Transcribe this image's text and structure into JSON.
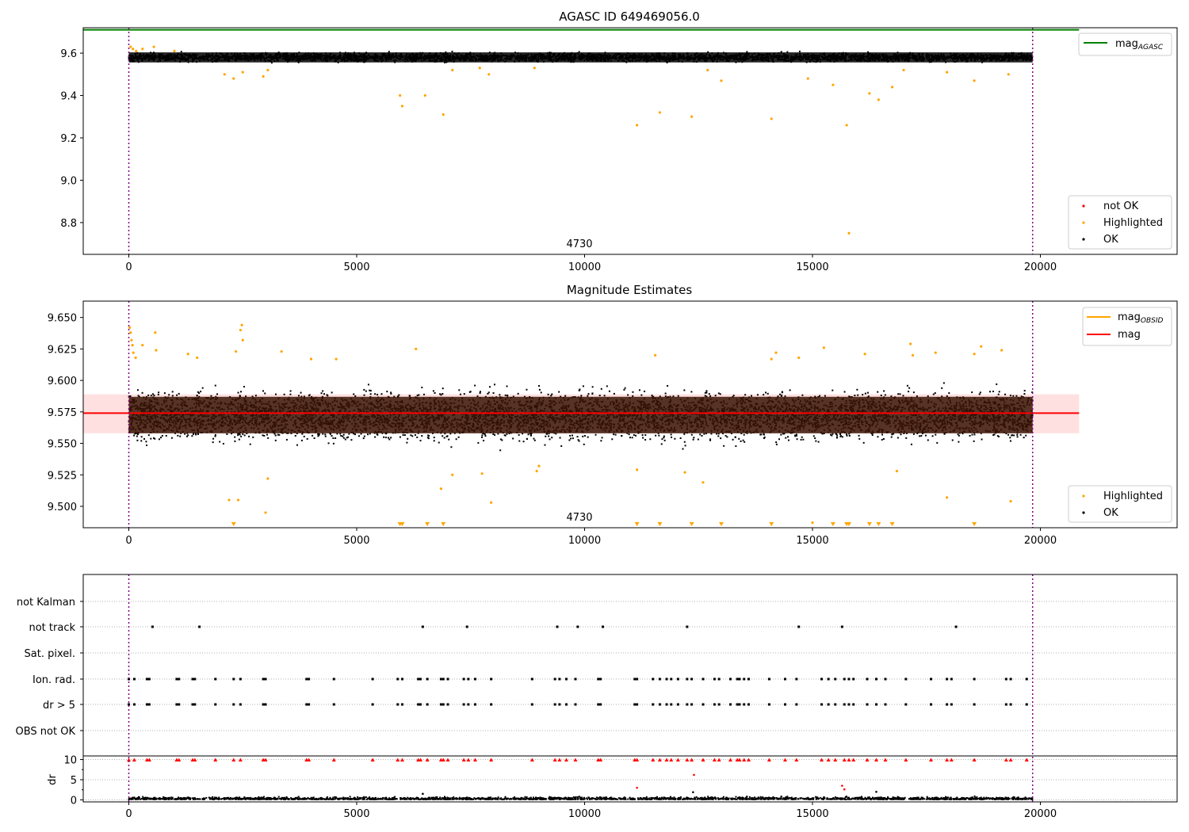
{
  "chart_data": [
    {
      "type": "scatter",
      "title": "AGASC ID 649469056.0",
      "annotation": "4730",
      "xlim": [
        -1000,
        23000
      ],
      "ylim": [
        8.65,
        9.72
      ],
      "x_ticks": [
        0,
        5000,
        10000,
        15000,
        20000
      ],
      "x_tick_labels": [
        "0",
        "5000",
        "10000",
        "15000",
        "20000"
      ],
      "y_ticks": [
        8.8,
        9.0,
        9.2,
        9.4,
        9.6
      ],
      "y_tick_labels": [
        "8.8",
        "9.0",
        "9.2",
        "9.4",
        "9.6"
      ],
      "obs_boundaries": [
        0,
        19830
      ],
      "mag_agasc": 9.71,
      "mag_agasc_label": "mag",
      "mag_agasc_sub": "AGASC",
      "legend_upper": "top-right",
      "legend_lower": "bottom-right",
      "series": [
        {
          "name": "not OK",
          "color": "#ff0000",
          "points": []
        },
        {
          "name": "Highlighted",
          "color": "#ffa500",
          "points": [
            [
              40,
              9.63
            ],
            [
              90,
              9.62
            ],
            [
              160,
              9.61
            ],
            [
              300,
              9.62
            ],
            [
              550,
              9.63
            ],
            [
              1000,
              9.61
            ],
            [
              2100,
              9.5
            ],
            [
              2300,
              9.48
            ],
            [
              2500,
              9.51
            ],
            [
              2950,
              9.49
            ],
            [
              3050,
              9.52
            ],
            [
              5950,
              9.4
            ],
            [
              6000,
              9.35
            ],
            [
              6500,
              9.4
            ],
            [
              6900,
              9.31
            ],
            [
              7100,
              9.52
            ],
            [
              7700,
              9.53
            ],
            [
              7900,
              9.5
            ],
            [
              8900,
              9.53
            ],
            [
              11150,
              9.26
            ],
            [
              11650,
              9.32
            ],
            [
              12350,
              9.3
            ],
            [
              12700,
              9.52
            ],
            [
              13000,
              9.47
            ],
            [
              14100,
              9.29
            ],
            [
              14900,
              9.48
            ],
            [
              15450,
              9.45
            ],
            [
              15750,
              9.26
            ],
            [
              15800,
              8.75
            ],
            [
              16250,
              9.41
            ],
            [
              16450,
              9.38
            ],
            [
              16750,
              9.44
            ],
            [
              17000,
              9.52
            ],
            [
              17950,
              9.51
            ],
            [
              18550,
              9.47
            ],
            [
              19300,
              9.5
            ]
          ]
        },
        {
          "name": "OK",
          "color": "#000000",
          "band": [
            9.545,
            9.615
          ]
        }
      ]
    },
    {
      "type": "scatter",
      "title": "Magnitude Estimates",
      "annotation": "4730",
      "xlim": [
        -1000,
        23000
      ],
      "ylim": [
        9.483,
        9.663
      ],
      "x_ticks": [
        0,
        5000,
        10000,
        15000,
        20000
      ],
      "x_tick_labels": [
        "0",
        "5000",
        "10000",
        "15000",
        "20000"
      ],
      "y_ticks": [
        9.5,
        9.525,
        9.55,
        9.575,
        9.6,
        9.625,
        9.65
      ],
      "y_tick_labels": [
        "9.500",
        "9.525",
        "9.550",
        "9.575",
        "9.600",
        "9.625",
        "9.650"
      ],
      "obs_boundaries": [
        0,
        19830
      ],
      "mag": 9.574,
      "mag_band": [
        9.558,
        9.589
      ],
      "mag_obsid": 9.573,
      "lines": [
        {
          "label": "mag",
          "sub": "OBSID",
          "color": "#ffa500"
        },
        {
          "label": "mag",
          "sub": "",
          "color": "#ff0000"
        }
      ],
      "legend_upper": "top-right",
      "legend_lower": "bottom-right",
      "series": [
        {
          "name": "Highlighted",
          "color": "#ffa500",
          "points": [
            [
              20,
              9.642
            ],
            [
              40,
              9.638
            ],
            [
              60,
              9.632
            ],
            [
              80,
              9.628
            ],
            [
              100,
              9.622
            ],
            [
              150,
              9.618
            ],
            [
              300,
              9.628
            ],
            [
              580,
              9.638
            ],
            [
              600,
              9.624
            ],
            [
              1300,
              9.621
            ],
            [
              1500,
              9.618
            ],
            [
              2200,
              9.505
            ],
            [
              2350,
              9.623
            ],
            [
              2400,
              9.505
            ],
            [
              2450,
              9.64
            ],
            [
              2480,
              9.644
            ],
            [
              2500,
              9.632
            ],
            [
              3050,
              9.522
            ],
            [
              3000,
              9.495
            ],
            [
              3350,
              9.623
            ],
            [
              4000,
              9.617
            ],
            [
              4550,
              9.617
            ],
            [
              6300,
              9.625
            ],
            [
              6850,
              9.514
            ],
            [
              7100,
              9.525
            ],
            [
              7750,
              9.526
            ],
            [
              7950,
              9.503
            ],
            [
              8950,
              9.528
            ],
            [
              9000,
              9.532
            ],
            [
              11150,
              9.529
            ],
            [
              11550,
              9.62
            ],
            [
              12200,
              9.527
            ],
            [
              12600,
              9.519
            ],
            [
              14100,
              9.617
            ],
            [
              14200,
              9.622
            ],
            [
              14700,
              9.618
            ],
            [
              15000,
              9.487
            ],
            [
              15250,
              9.626
            ],
            [
              16150,
              9.621
            ],
            [
              16850,
              9.528
            ],
            [
              17150,
              9.629
            ],
            [
              17200,
              9.62
            ],
            [
              17700,
              9.622
            ],
            [
              17950,
              9.507
            ],
            [
              18550,
              9.621
            ],
            [
              18700,
              9.627
            ],
            [
              19150,
              9.624
            ],
            [
              19350,
              9.504
            ]
          ]
        },
        {
          "name": "OK",
          "color": "#000000",
          "band": [
            9.525,
            9.618
          ]
        }
      ],
      "clipped_low_x": [
        2300,
        5950,
        6000,
        6550,
        6900,
        11150,
        11650,
        12350,
        13000,
        14100,
        15450,
        15750,
        15800,
        16250,
        16450,
        16750,
        18550
      ]
    },
    {
      "type": "scatter",
      "title": "",
      "xlim": [
        -1000,
        23000
      ],
      "x_ticks": [
        0,
        5000,
        10000,
        15000,
        20000
      ],
      "x_tick_labels": [
        "0",
        "5000",
        "10000",
        "15000",
        "20000"
      ],
      "obs_boundaries": [
        0,
        19830
      ],
      "flag_labels": [
        "not Kalman",
        "not track",
        "Sat. pixel.",
        "Ion. rad.",
        "dr > 5",
        "OBS not OK"
      ],
      "not_track_x": [
        520,
        1550,
        6450,
        7420,
        9400,
        9850,
        10400,
        12250,
        14700,
        15650,
        18150
      ],
      "ion_rad_x": [
        0,
        120,
        400,
        450,
        1050,
        1100,
        1400,
        1450,
        1900,
        2300,
        2450,
        2950,
        3000,
        3900,
        3950,
        4500,
        5350,
        5900,
        6000,
        6350,
        6400,
        6550,
        6850,
        6900,
        7000,
        7350,
        7450,
        7600,
        7950,
        8850,
        9350,
        9450,
        9600,
        9800,
        10300,
        10350,
        11100,
        11150,
        11500,
        11650,
        11800,
        11900,
        12050,
        12250,
        12350,
        12600,
        12850,
        12950,
        13200,
        13350,
        13400,
        13500,
        13600,
        14050,
        14400,
        14650,
        15200,
        15350,
        15500,
        15700,
        15800,
        15900,
        16200,
        16400,
        16600,
        17050,
        17600,
        17950,
        18050,
        18550,
        19250,
        19350,
        19700
      ],
      "dr_ylabel": "dr",
      "dr_ylim": [
        -0.5,
        10.5
      ],
      "dr_ticks": [
        0,
        5,
        10
      ],
      "dr_tick_labels": [
        "0",
        "5",
        "10"
      ],
      "dr_outliers": [
        [
          6450,
          1.5
        ],
        [
          11150,
          3.0
        ],
        [
          12400,
          6.2
        ],
        [
          12380,
          1.9
        ],
        [
          15650,
          3.5
        ],
        [
          15700,
          2.6
        ],
        [
          16400,
          2.0
        ]
      ]
    }
  ]
}
